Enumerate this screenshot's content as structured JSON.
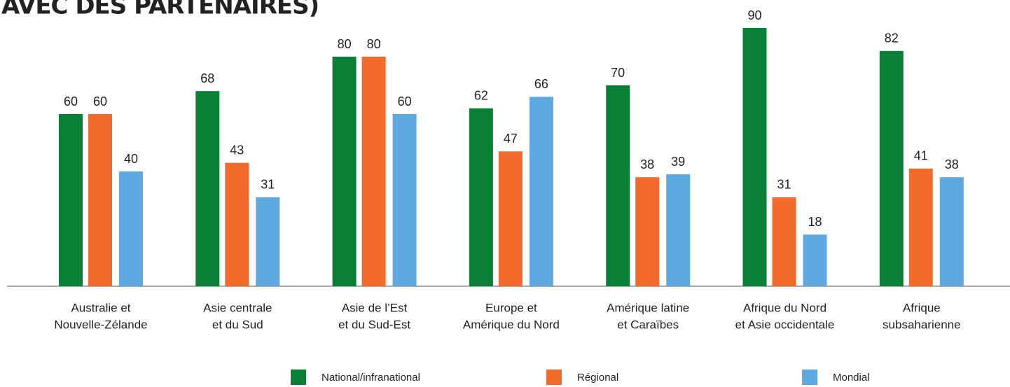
{
  "chart_data": {
    "type": "bar",
    "title": "AVEC DES PARTENAIRES)",
    "categories": [
      [
        "Australie et",
        "Nouvelle-Zélande"
      ],
      [
        "Asie centrale",
        "et du Sud"
      ],
      [
        "Asie de l’Est",
        "et du Sud-Est"
      ],
      [
        "Europe et",
        "Amérique du Nord"
      ],
      [
        "Amérique latine",
        "et Caraïbes"
      ],
      [
        "Afrique du Nord",
        "et Asie occidentale"
      ],
      [
        "Afrique",
        "subsaharienne"
      ]
    ],
    "series": [
      {
        "name": "National/infranational",
        "color": "#0a8037",
        "values": [
          60,
          68,
          80,
          62,
          70,
          90,
          82
        ]
      },
      {
        "name": "Régional",
        "color": "#f36b2b",
        "values": [
          60,
          43,
          80,
          47,
          38,
          31,
          41
        ]
      },
      {
        "name": "Mondial",
        "color": "#5ea9e1",
        "values": [
          40,
          31,
          60,
          66,
          39,
          18,
          38
        ]
      }
    ],
    "ylim": [
      0,
      90
    ]
  }
}
